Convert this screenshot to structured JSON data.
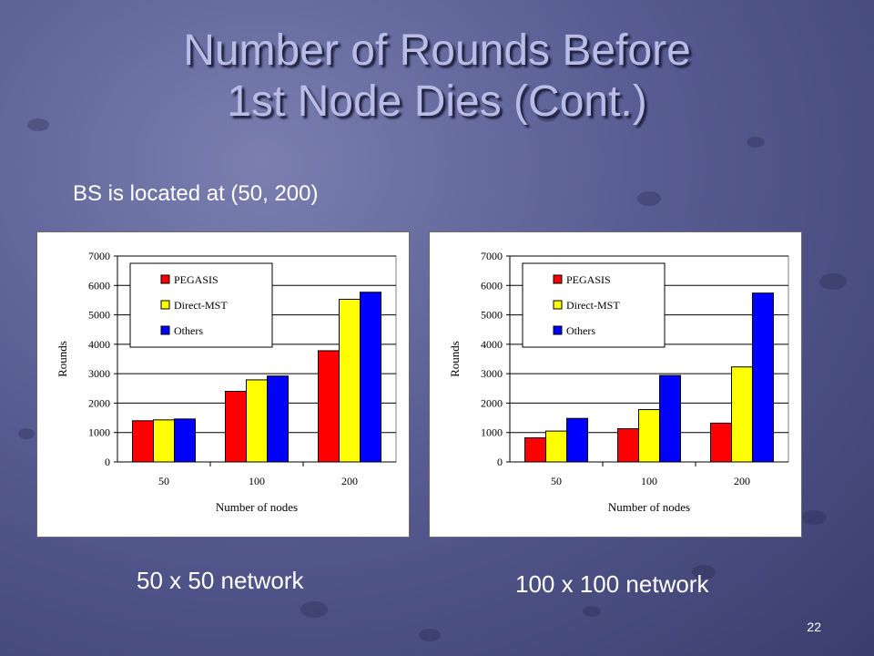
{
  "slide": {
    "title_line1": "Number of Rounds Before",
    "title_line2": "1st Node Dies (Cont.)",
    "subtitle": "BS is located at (50, 200)",
    "page_number": "22"
  },
  "chart_data": [
    {
      "type": "bar",
      "caption": "50 x 50 network",
      "categories": [
        "50",
        "100",
        "200"
      ],
      "series": [
        {
          "name": "PEGASIS",
          "color": "#ff0000",
          "values": [
            1400,
            2400,
            3780
          ]
        },
        {
          "name": "Direct-MST",
          "color": "#ffff00",
          "values": [
            1430,
            2790,
            5530
          ]
        },
        {
          "name": "Others",
          "color": "#0000ff",
          "values": [
            1460,
            2920,
            5770
          ]
        }
      ],
      "xlabel": "Number of nodes",
      "ylabel": "Rounds",
      "ylim": [
        0,
        7000
      ],
      "yticks": [
        "0",
        "1000",
        "2000",
        "3000",
        "4000",
        "5000",
        "6000",
        "7000"
      ],
      "grid": true,
      "legend": "top-left"
    },
    {
      "type": "bar",
      "caption": "100 x 100 network",
      "categories": [
        "50",
        "100",
        "200"
      ],
      "series": [
        {
          "name": "PEGASIS",
          "color": "#ff0000",
          "values": [
            820,
            1130,
            1320
          ]
        },
        {
          "name": "Direct-MST",
          "color": "#ffff00",
          "values": [
            1050,
            1780,
            3230
          ]
        },
        {
          "name": "Others",
          "color": "#0000ff",
          "values": [
            1480,
            2940,
            5740
          ]
        }
      ],
      "xlabel": "Number of nodes",
      "ylabel": "Rounds",
      "ylim": [
        0,
        7000
      ],
      "yticks": [
        "0",
        "1000",
        "2000",
        "3000",
        "4000",
        "5000",
        "6000",
        "7000"
      ],
      "grid": true,
      "legend": "top-left"
    }
  ]
}
